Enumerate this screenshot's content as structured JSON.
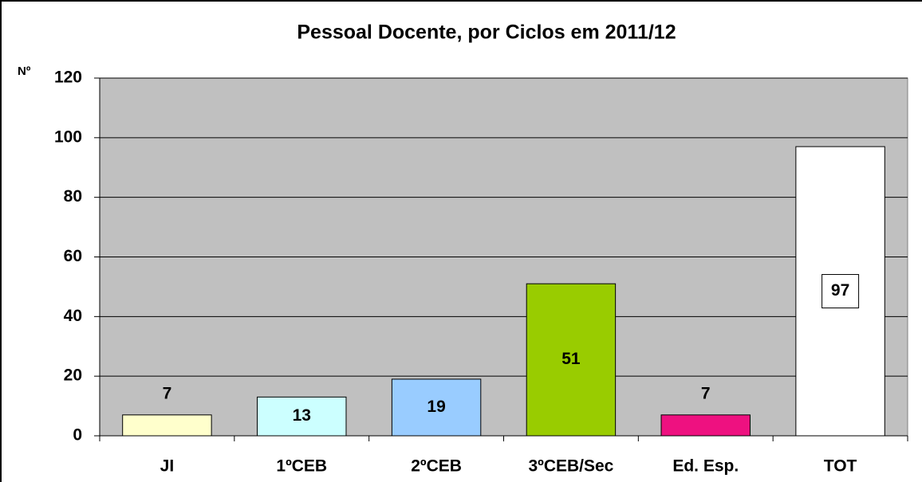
{
  "chart_data": {
    "type": "bar",
    "title": "Pessoal Docente, por Ciclos em 2011/12",
    "y_label": "Nº",
    "categories": [
      "JI",
      "1ºCEB",
      "2ºCEB",
      "3ºCEB/Sec",
      "Ed. Esp.",
      "TOT"
    ],
    "values": [
      7,
      13,
      19,
      51,
      7,
      97
    ],
    "colors": [
      "#ffffcc",
      "#ccffff",
      "#99ccff",
      "#99cc00",
      "#ee1180",
      "#ffffff"
    ],
    "ylim": [
      0,
      120
    ],
    "yticks": [
      0,
      20,
      40,
      60,
      80,
      100,
      120
    ],
    "grid": true,
    "plot_background": "#c0c0c0"
  }
}
